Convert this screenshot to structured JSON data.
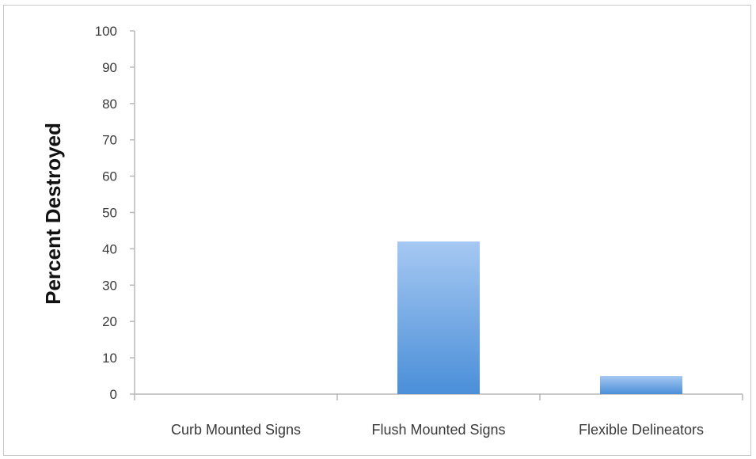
{
  "chart_data": {
    "type": "bar",
    "title": "",
    "xlabel": "",
    "ylabel": "Percent Destroyed",
    "categories": [
      "Curb Mounted Signs",
      "Flush Mounted Signs",
      "Flexible Delineators"
    ],
    "values": [
      0,
      42,
      5
    ],
    "ylim": [
      0,
      100
    ],
    "yticks": [
      0,
      10,
      20,
      30,
      40,
      50,
      60,
      70,
      80,
      90,
      100
    ],
    "grid": false,
    "legend": "none",
    "bar_color_top": "#a6c8f2",
    "bar_color_bottom": "#4a8fd8",
    "axis_color": "#b8b8b8"
  }
}
